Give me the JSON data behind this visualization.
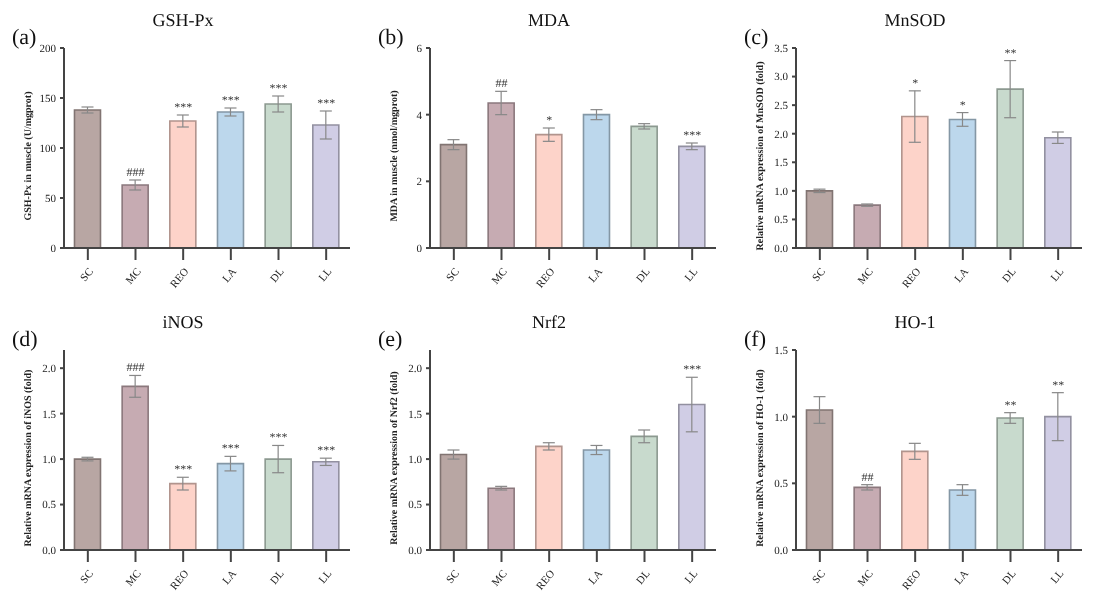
{
  "chart_data": [
    {
      "type": "bar",
      "title": "GSH-Px",
      "ylabel": "GSH-Px in muscle (U/mgprot)",
      "categories": [
        "SC",
        "MC",
        "REO",
        "LA",
        "DL",
        "LL"
      ],
      "values": [
        138,
        63,
        127,
        136,
        144,
        123
      ],
      "errors": [
        3,
        5,
        6,
        4,
        8,
        14
      ],
      "colors": [
        "#b8a6a3",
        "#c6abb2",
        "#fdd3c9",
        "#bcd7ec",
        "#c8dacd",
        "#d0cde5"
      ],
      "ylim": [
        0,
        200
      ],
      "yticks": [
        0,
        50,
        100,
        150,
        200
      ],
      "grid": false,
      "legend": false,
      "annotations": [
        "(a)",
        {
          "text": "###",
          "x": "MC",
          "y": 68
        },
        {
          "text": "***",
          "x": "REO",
          "y": 133
        },
        {
          "text": "***",
          "x": "LA",
          "y": 140
        },
        {
          "text": "***",
          "x": "DL",
          "y": 152
        },
        {
          "text": "***",
          "x": "LL",
          "y": 137
        }
      ]
    },
    {
      "type": "bar",
      "title": "MDA",
      "ylabel": "MDA in muscle (nmol/mgprot)",
      "categories": [
        "SC",
        "MC",
        "REO",
        "LA",
        "DL",
        "LL"
      ],
      "values": [
        3.1,
        4.35,
        3.4,
        4.0,
        3.65,
        3.05
      ],
      "errors": [
        0.15,
        0.35,
        0.2,
        0.15,
        0.08,
        0.1
      ],
      "colors": [
        "#b8a6a3",
        "#c6abb2",
        "#fdd3c9",
        "#bcd7ec",
        "#c8dacd",
        "#d0cde5"
      ],
      "ylim": [
        0,
        6
      ],
      "yticks": [
        0,
        2,
        4,
        6
      ],
      "grid": false,
      "legend": false,
      "annotations": [
        "(b)",
        {
          "text": "##",
          "x": "MC",
          "y": 4.7
        },
        {
          "text": "*",
          "x": "REO",
          "y": 3.6
        },
        {
          "text": "***",
          "x": "LL",
          "y": 3.15
        }
      ]
    },
    {
      "type": "bar",
      "title": "MnSOD",
      "ylabel": "Relative mRNA expression of MnSOD (fold)",
      "categories": [
        "SC",
        "MC",
        "REO",
        "LA",
        "DL",
        "LL"
      ],
      "values": [
        1.0,
        0.75,
        2.3,
        2.25,
        2.78,
        1.93
      ],
      "errors": [
        0.03,
        0.02,
        0.45,
        0.12,
        0.5,
        0.1
      ],
      "colors": [
        "#b8a6a3",
        "#c6abb2",
        "#fdd3c9",
        "#bcd7ec",
        "#c8dacd",
        "#d0cde5"
      ],
      "ylim": [
        0,
        3.5
      ],
      "yticks": [
        {
          "value": 0,
          "label": "0.0"
        },
        0.5,
        {
          "value": 1,
          "label": "1.0"
        },
        1.5,
        {
          "value": 2,
          "label": "2.0"
        },
        2.5,
        {
          "value": 3,
          "label": "3.0"
        },
        3.5
      ],
      "grid": false,
      "legend": false,
      "annotations": [
        "(c)",
        {
          "text": "*",
          "x": "REO",
          "y": 2.75
        },
        {
          "text": "*",
          "x": "LA",
          "y": 2.37
        },
        {
          "text": "**",
          "x": "DL",
          "y": 3.28
        }
      ]
    },
    {
      "type": "bar",
      "title": "iNOS",
      "ylabel": "Relative mRNA expression of iNOS (fold)",
      "categories": [
        "SC",
        "MC",
        "REO",
        "LA",
        "DL",
        "LL"
      ],
      "values": [
        1.0,
        1.8,
        0.73,
        0.95,
        1.0,
        0.97
      ],
      "errors": [
        0.02,
        0.12,
        0.07,
        0.08,
        0.15,
        0.04
      ],
      "colors": [
        "#b8a6a3",
        "#c6abb2",
        "#fdd3c9",
        "#bcd7ec",
        "#c8dacd",
        "#d0cde5"
      ],
      "ylim": [
        0,
        2.2
      ],
      "yticks": [
        {
          "value": 0,
          "label": "0.0"
        },
        0.5,
        {
          "value": 1,
          "label": "1.0"
        },
        1.5,
        {
          "value": 2,
          "label": "2.0"
        }
      ],
      "grid": false,
      "legend": false,
      "annotations": [
        "(d)",
        {
          "text": "###",
          "x": "MC",
          "y": 1.92
        },
        {
          "text": "***",
          "x": "REO",
          "y": 0.8
        },
        {
          "text": "***",
          "x": "LA",
          "y": 1.03
        },
        {
          "text": "***",
          "x": "DL",
          "y": 1.15
        },
        {
          "text": "***",
          "x": "LL",
          "y": 1.01
        }
      ]
    },
    {
      "type": "bar",
      "title": "Nrf2",
      "ylabel": "Relative mRNA expression of Nrf2 (fold)",
      "categories": [
        "SC",
        "MC",
        "REO",
        "LA",
        "DL",
        "LL"
      ],
      "values": [
        1.05,
        0.68,
        1.14,
        1.1,
        1.25,
        1.6
      ],
      "errors": [
        0.05,
        0.02,
        0.04,
        0.05,
        0.07,
        0.3
      ],
      "colors": [
        "#b8a6a3",
        "#c6abb2",
        "#fdd3c9",
        "#bcd7ec",
        "#c8dacd",
        "#d0cde5"
      ],
      "ylim": [
        0,
        2.2
      ],
      "yticks": [
        {
          "value": 0,
          "label": "0.0"
        },
        0.5,
        {
          "value": 1,
          "label": "1.0"
        },
        1.5,
        {
          "value": 2,
          "label": "2.0"
        }
      ],
      "grid": false,
      "legend": false,
      "annotations": [
        "(e)",
        {
          "text": "***",
          "x": "LL",
          "y": 1.9
        }
      ]
    },
    {
      "type": "bar",
      "title": "HO-1",
      "ylabel": "Relative mRNA expression of HO-1 (fold)",
      "categories": [
        "SC",
        "MC",
        "REO",
        "LA",
        "DL",
        "LL"
      ],
      "values": [
        1.05,
        0.47,
        0.74,
        0.45,
        0.99,
        1.0
      ],
      "errors": [
        0.1,
        0.02,
        0.06,
        0.04,
        0.04,
        0.18
      ],
      "colors": [
        "#b8a6a3",
        "#c6abb2",
        "#fdd3c9",
        "#bcd7ec",
        "#c8dacd",
        "#d0cde5"
      ],
      "ylim": [
        0,
        1.5
      ],
      "yticks": [
        {
          "value": 0,
          "label": "0.0"
        },
        0.5,
        {
          "value": 1,
          "label": "1.0"
        },
        1.5
      ],
      "grid": false,
      "legend": false,
      "annotations": [
        "(f)",
        {
          "text": "##",
          "x": "MC",
          "y": 0.49
        },
        {
          "text": "**",
          "x": "DL",
          "y": 1.03
        },
        {
          "text": "**",
          "x": "LL",
          "y": 1.18
        }
      ]
    }
  ]
}
